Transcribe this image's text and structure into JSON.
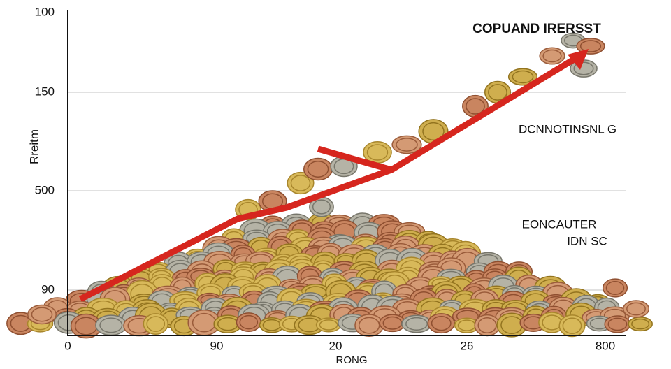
{
  "title": "COPUAND IRERSST",
  "y_axis": {
    "label": "Rreitm",
    "tick_labels": [
      "100",
      "150",
      "500",
      "90"
    ]
  },
  "x_axis": {
    "label": "RONG",
    "tick_labels": [
      "0",
      "90",
      "20",
      "26",
      "800"
    ]
  },
  "annotations": [
    "DCNNOTINSNL G",
    "EONCAUTER",
    "IDN SC"
  ]
}
